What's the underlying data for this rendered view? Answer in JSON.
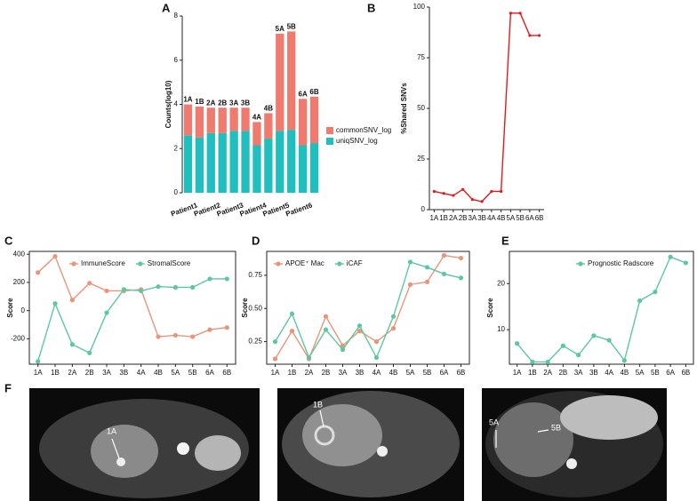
{
  "chart_data": [
    {
      "type": "bar",
      "stacked": true,
      "label": "A",
      "ylabel": "Counts(log10)",
      "categories": [
        "1A",
        "1B",
        "2A",
        "2B",
        "3A",
        "3B",
        "4A",
        "4B",
        "5A",
        "5B",
        "6A",
        "6B"
      ],
      "groups": [
        "Patient1",
        "Patient2",
        "Patient3",
        "Patient4",
        "Patient5",
        "Patient6"
      ],
      "series": [
        {
          "name": "uniqSNV_log",
          "color": "#1fbfbf",
          "values": [
            2.6,
            2.5,
            2.7,
            2.7,
            2.8,
            2.8,
            2.15,
            2.45,
            2.8,
            2.85,
            2.15,
            2.25
          ]
        },
        {
          "name": "commonSNV_log",
          "color": "#f07a6e",
          "values": [
            1.4,
            1.4,
            1.15,
            1.15,
            1.05,
            1.05,
            1.05,
            1.15,
            4.4,
            4.45,
            2.1,
            2.1
          ]
        }
      ],
      "ylim": [
        0,
        8
      ],
      "yticks": [
        0,
        2,
        4,
        6,
        8
      ],
      "legend": "right"
    },
    {
      "type": "line",
      "label": "B",
      "ylabel": "%Shared SNVs",
      "categories": [
        "1A",
        "1B",
        "2A",
        "2B",
        "3A",
        "3B",
        "4A",
        "4B",
        "5A",
        "5B",
        "6A",
        "6B"
      ],
      "series": [
        {
          "color": "#e3191c",
          "values": [
            9,
            8,
            7,
            10,
            5,
            4,
            9,
            9,
            97,
            97,
            86,
            86
          ]
        }
      ],
      "ylim": [
        0,
        100
      ],
      "yticks": [
        0,
        25,
        50,
        75,
        100
      ]
    },
    {
      "type": "line",
      "label": "C",
      "ylabel": "Score",
      "categories": [
        "1A",
        "1B",
        "2A",
        "2B",
        "3A",
        "3B",
        "4A",
        "4B",
        "5A",
        "5B",
        "6A",
        "6B"
      ],
      "series": [
        {
          "name": "ImmuneScore",
          "color": "#e8967a",
          "values": [
            270,
            385,
            75,
            195,
            140,
            140,
            150,
            -185,
            -175,
            -185,
            -135,
            -120
          ]
        },
        {
          "name": "StromalScore",
          "color": "#5cc8a0",
          "values": [
            -360,
            50,
            -240,
            -300,
            -15,
            150,
            140,
            170,
            165,
            165,
            225,
            225
          ]
        }
      ],
      "ylim": [
        -380,
        420
      ],
      "yticks": [
        -200,
        0,
        200,
        400
      ],
      "legend": "top"
    },
    {
      "type": "line",
      "label": "D",
      "ylabel": "Score",
      "categories": [
        "1A",
        "1B",
        "2A",
        "2B",
        "3A",
        "3B",
        "4A",
        "4B",
        "5A",
        "5B",
        "6A",
        "6B"
      ],
      "series": [
        {
          "name": "APOE⁺ Mac",
          "color": "#e8967a",
          "values": [
            0.12,
            0.33,
            0.12,
            0.44,
            0.22,
            0.33,
            0.25,
            0.35,
            0.68,
            0.7,
            0.9,
            0.88
          ]
        },
        {
          "name": "iCAF",
          "color": "#5cc8a0",
          "values": [
            0.25,
            0.46,
            0.13,
            0.34,
            0.19,
            0.37,
            0.13,
            0.44,
            0.85,
            0.81,
            0.76,
            0.73
          ]
        }
      ],
      "ylim": [
        0.08,
        0.93
      ],
      "yticks": [
        0.25,
        {
          "value": 0.5,
          "label": "0.50"
        },
        0.75
      ],
      "legend": "top-left"
    },
    {
      "type": "line",
      "label": "E",
      "ylabel": "Score",
      "categories": [
        "1A",
        "1B",
        "2A",
        "2B",
        "3A",
        "3B",
        "4A",
        "4B",
        "5A",
        "5B",
        "6A",
        "6B"
      ],
      "series": [
        {
          "name": "Prognostic Radscore",
          "color": "#5cc8a0",
          "values": [
            7,
            3,
            3,
            6.5,
            4.5,
            8.7,
            7.7,
            3.3,
            16.3,
            18.2,
            25.8,
            24.5
          ]
        }
      ],
      "ylim": [
        2.5,
        27
      ],
      "yticks": [
        10,
        20
      ],
      "legend": "top"
    }
  ],
  "figure_f": {
    "label": "F",
    "images": [
      {
        "annotations": [
          "1A"
        ]
      },
      {
        "annotations": [
          "1B"
        ]
      },
      {
        "annotations": [
          "5A",
          "5B"
        ]
      }
    ]
  }
}
